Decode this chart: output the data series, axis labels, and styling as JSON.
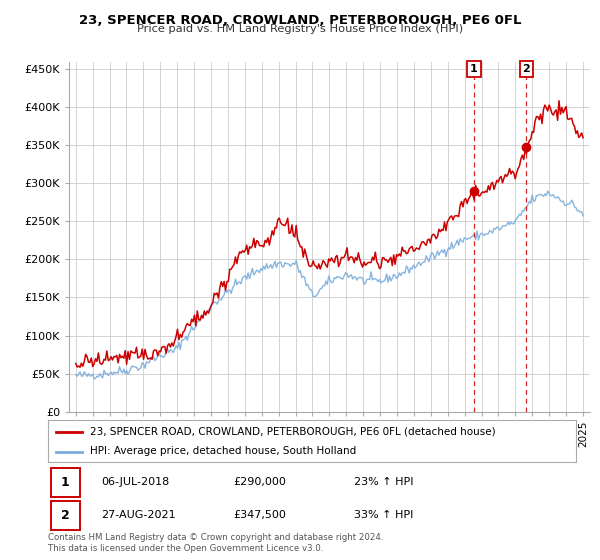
{
  "title": "23, SPENCER ROAD, CROWLAND, PETERBOROUGH, PE6 0FL",
  "subtitle": "Price paid vs. HM Land Registry's House Price Index (HPI)",
  "legend_line1": "23, SPENCER ROAD, CROWLAND, PETERBOROUGH, PE6 0FL (detached house)",
  "legend_line2": "HPI: Average price, detached house, South Holland",
  "annotation1_date": "06-JUL-2018",
  "annotation1_price": "£290,000",
  "annotation1_hpi": "23% ↑ HPI",
  "annotation2_date": "27-AUG-2021",
  "annotation2_price": "£347,500",
  "annotation2_hpi": "33% ↑ HPI",
  "footer": "Contains HM Land Registry data © Crown copyright and database right 2024.\nThis data is licensed under the Open Government Licence v3.0.",
  "red_color": "#cc0000",
  "blue_color": "#7aaddc",
  "ytick_labels": [
    "£0",
    "£50K",
    "£100K",
    "£150K",
    "£200K",
    "£250K",
    "£300K",
    "£350K",
    "£400K",
    "£450K"
  ],
  "ytick_vals": [
    0,
    50000,
    100000,
    150000,
    200000,
    250000,
    300000,
    350000,
    400000,
    450000
  ],
  "sale1_year": 2018.55,
  "sale1_price": 290000,
  "sale2_year": 2021.65,
  "sale2_price": 347500,
  "xlim_left": 1994.6,
  "xlim_right": 2025.4,
  "ylim_top": 460000,
  "grid_color": "#cccccc",
  "background_color": "#ffffff"
}
